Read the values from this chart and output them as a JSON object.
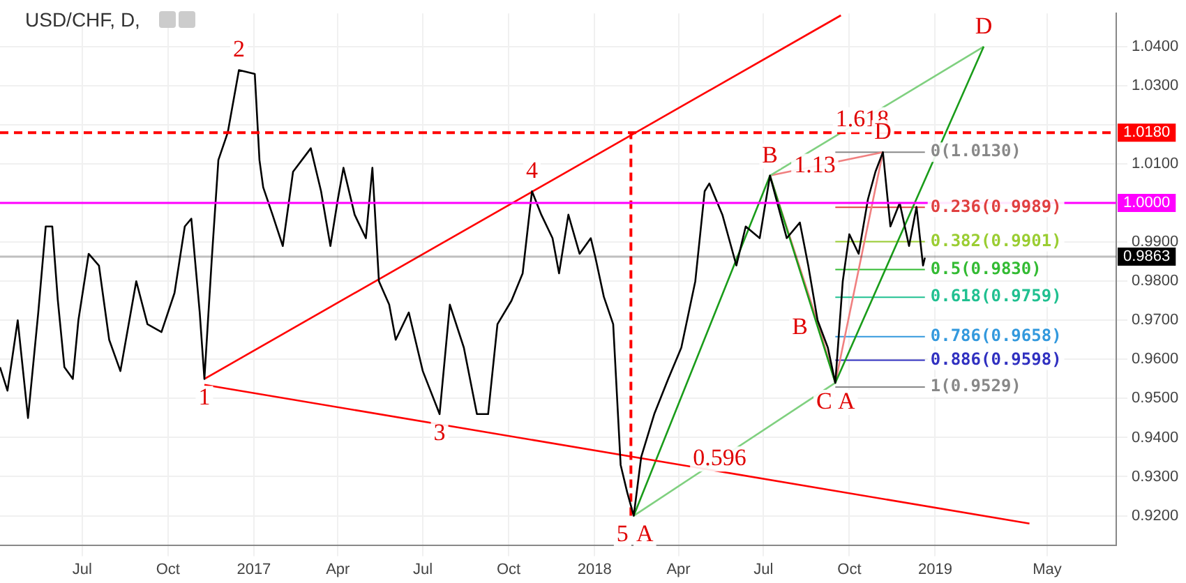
{
  "chart_data": {
    "type": "line",
    "title": "USD/CHF, D,",
    "marker": "none",
    "grid": true,
    "xlim": [
      "2016-04-04",
      "2019-07-14"
    ],
    "xticks": [
      {
        "value": "2016-07-01",
        "label": "Jul"
      },
      {
        "value": "2016-10-01",
        "label": "Oct"
      },
      {
        "value": "2017-01-01",
        "label": "2017"
      },
      {
        "value": "2017-04-01",
        "label": "Apr"
      },
      {
        "value": "2017-07-01",
        "label": "Jul"
      },
      {
        "value": "2017-10-01",
        "label": "Oct"
      },
      {
        "value": "2018-01-01",
        "label": "2018"
      },
      {
        "value": "2018-04-01",
        "label": "Apr"
      },
      {
        "value": "2018-07-01",
        "label": "Jul"
      },
      {
        "value": "2018-10-01",
        "label": "Oct"
      },
      {
        "value": "2019-01-01",
        "label": "2019"
      },
      {
        "value": "2019-05-01",
        "label": "May"
      }
    ],
    "ylim": [
      0.9125,
      1.0485
    ],
    "yticks": [
      {
        "value": 0.92,
        "label": "0.9200"
      },
      {
        "value": 0.93,
        "label": "0.9300"
      },
      {
        "value": 0.94,
        "label": "0.9400"
      },
      {
        "value": 0.95,
        "label": "0.9500"
      },
      {
        "value": 0.96,
        "label": "0.9600"
      },
      {
        "value": 0.97,
        "label": "0.9700"
      },
      {
        "value": 0.98,
        "label": "0.9800"
      },
      {
        "value": 0.99,
        "label": "0.9900"
      },
      {
        "value": 1.0,
        "label": null
      },
      {
        "value": 1.01,
        "label": "1.0100"
      },
      {
        "value": 1.02,
        "label": null
      },
      {
        "value": 1.03,
        "label": "1.0300"
      },
      {
        "value": 1.04,
        "label": "1.0400"
      }
    ],
    "series": [
      {
        "color": "#000000",
        "x": [
          "2016-04-04",
          "2016-04-12",
          "2016-04-23",
          "2016-05-04",
          "2016-05-15",
          "2016-05-23",
          "2016-05-30",
          "2016-06-05",
          "2016-06-12",
          "2016-06-21",
          "2016-06-27",
          "2016-07-08",
          "2016-07-19",
          "2016-07-30",
          "2016-08-11",
          "2016-08-28",
          "2016-09-09",
          "2016-09-24",
          "2016-10-08",
          "2016-10-19",
          "2016-10-26",
          "2016-11-04",
          "2016-11-09",
          "2016-11-17",
          "2016-11-24",
          "2016-12-04",
          "2016-12-16",
          "2017-01-02",
          "2017-01-07",
          "2017-01-11",
          "2017-01-21",
          "2017-02-01",
          "2017-02-12",
          "2017-03-03",
          "2017-03-14",
          "2017-03-24",
          "2017-04-01",
          "2017-04-07",
          "2017-04-19",
          "2017-05-01",
          "2017-05-08",
          "2017-05-15",
          "2017-05-26",
          "2017-06-02",
          "2017-06-16",
          "2017-07-01",
          "2017-07-19",
          "2017-07-30",
          "2017-08-14",
          "2017-08-28",
          "2017-09-09",
          "2017-09-19",
          "2017-10-04",
          "2017-10-16",
          "2017-10-26",
          "2017-11-05",
          "2017-11-17",
          "2017-11-24",
          "2017-12-04",
          "2017-12-16",
          "2017-12-28",
          "2018-01-02",
          "2018-01-11",
          "2018-01-21",
          "2018-01-29",
          "2018-02-05",
          "2018-02-12",
          "2018-02-20",
          "2018-03-06",
          "2018-03-21",
          "2018-04-04",
          "2018-04-19",
          "2018-04-29",
          "2018-05-04",
          "2018-05-18",
          "2018-06-02",
          "2018-06-12",
          "2018-06-27",
          "2018-07-08",
          "2018-07-26",
          "2018-08-09",
          "2018-08-18",
          "2018-08-28",
          "2018-09-08",
          "2018-09-16",
          "2018-09-24",
          "2018-10-01",
          "2018-10-11",
          "2018-10-21",
          "2018-10-29",
          "2018-11-06",
          "2018-11-14",
          "2018-11-24",
          "2018-12-04",
          "2018-12-12",
          "2018-12-19",
          "2018-12-21"
        ],
        "values": [
          0.958,
          0.952,
          0.97,
          0.945,
          0.972,
          0.994,
          0.994,
          0.975,
          0.958,
          0.955,
          0.97,
          0.987,
          0.984,
          0.965,
          0.957,
          0.98,
          0.969,
          0.967,
          0.977,
          0.994,
          0.996,
          0.972,
          0.955,
          0.986,
          1.011,
          1.018,
          1.034,
          1.033,
          1.011,
          1.004,
          0.997,
          0.989,
          1.008,
          1.014,
          1.003,
          0.989,
          1.001,
          1.009,
          0.997,
          0.991,
          1.009,
          0.98,
          0.974,
          0.965,
          0.972,
          0.957,
          0.946,
          0.974,
          0.963,
          0.946,
          0.946,
          0.969,
          0.975,
          0.982,
          1.003,
          0.997,
          0.991,
          0.982,
          0.997,
          0.987,
          0.991,
          0.986,
          0.976,
          0.969,
          0.933,
          0.926,
          0.92,
          0.935,
          0.946,
          0.955,
          0.963,
          0.98,
          1.003,
          1.005,
          0.997,
          0.984,
          0.994,
          0.991,
          1.007,
          0.991,
          0.995,
          0.984,
          0.97,
          0.963,
          0.954,
          0.98,
          0.992,
          0.987,
          1.001,
          1.008,
          1.013,
          0.994,
          1.0,
          0.989,
          0.999,
          0.984,
          0.986
        ]
      },
      {
        "color": "#ff0000",
        "x": [
          "2016-11-09",
          "2018-09-22"
        ],
        "values": [
          0.955,
          1.048
        ]
      },
      {
        "color": "#ff0000",
        "x": [
          "2016-11-09",
          "2019-04-12"
        ],
        "values": [
          0.9535,
          0.918
        ]
      },
      {
        "color": "#ff0000",
        "line_style": "dashed",
        "x": [
          "2018-02-09",
          "2018-02-09"
        ],
        "values": [
          0.92,
          1.018
        ]
      },
      {
        "color": "#1a9c1a",
        "x": [
          "2018-02-12",
          "2018-07-08",
          "2018-09-16",
          "2019-02-22"
        ],
        "values": [
          0.92,
          1.007,
          0.954,
          1.04
        ]
      },
      {
        "color": "#7fd07f",
        "x": [
          "2018-02-12",
          "2018-09-16"
        ],
        "values": [
          0.92,
          0.954
        ]
      },
      {
        "color": "#7fd07f",
        "x": [
          "2018-07-08",
          "2019-02-22"
        ],
        "values": [
          1.007,
          1.04
        ]
      },
      {
        "color": "#f08080",
        "x": [
          "2018-07-08",
          "2018-08-30",
          "2018-09-16",
          "2018-11-06"
        ],
        "values": [
          1.007,
          0.968,
          0.954,
          1.013
        ]
      },
      {
        "color": "#f08080",
        "x": [
          "2018-07-08",
          "2018-11-06"
        ],
        "values": [
          1.007,
          1.013
        ]
      },
      {
        "name": "0(1.0130)",
        "color": "#888888",
        "x": [
          "2018-09-16",
          "2018-12-21"
        ],
        "values": [
          1.013,
          1.013
        ]
      },
      {
        "name": "0.236(0.9989)",
        "color": "#e04040",
        "x": [
          "2018-09-16",
          "2018-12-21"
        ],
        "values": [
          0.9989,
          0.9989
        ]
      },
      {
        "name": "0.382(0.9901)",
        "color": "#9acd32",
        "x": [
          "2018-09-16",
          "2018-12-21"
        ],
        "values": [
          0.9901,
          0.9901
        ]
      },
      {
        "name": "0.5(0.9830)",
        "color": "#33bb33",
        "x": [
          "2018-09-16",
          "2018-12-21"
        ],
        "values": [
          0.983,
          0.983
        ]
      },
      {
        "name": "0.618(0.9759)",
        "color": "#20c090",
        "x": [
          "2018-09-16",
          "2018-12-21"
        ],
        "values": [
          0.9759,
          0.9759
        ]
      },
      {
        "name": "0.786(0.9658)",
        "color": "#3399dd",
        "x": [
          "2018-09-16",
          "2018-12-21"
        ],
        "values": [
          0.9658,
          0.9658
        ]
      },
      {
        "name": "0.886(0.9598)",
        "color": "#3030c0",
        "x": [
          "2018-09-16",
          "2018-12-21"
        ],
        "values": [
          0.9598,
          0.9598
        ]
      },
      {
        "name": "1(0.9529)",
        "color": "#888888",
        "x": [
          "2018-09-16",
          "2018-12-21"
        ],
        "values": [
          0.9529,
          0.9529
        ]
      }
    ],
    "ref_lines": [
      {
        "axis": "y",
        "value": 1.018,
        "label": "1.0180",
        "color": "#ff0000",
        "line_style": "dashed"
      },
      {
        "axis": "y",
        "value": 1.0,
        "label": "1.0000",
        "color": "#ff00ff",
        "line_style": "solid"
      },
      {
        "axis": "y",
        "value": 0.9863,
        "label": "0.9863",
        "color": "#000000",
        "line_style": "solid"
      }
    ],
    "annotations": [
      {
        "text": "1",
        "x": "2016-11-09",
        "y": 0.955
      },
      {
        "text": "2",
        "x": "2016-12-16",
        "y": 1.034
      },
      {
        "text": "3",
        "x": "2017-07-19",
        "y": 0.946
      },
      {
        "text": "4",
        "x": "2017-10-26",
        "y": 1.003
      },
      {
        "text": "5",
        "x": "2018-02-12",
        "y": 0.92
      },
      {
        "text": "A",
        "x": "2018-02-12",
        "y": 0.92
      },
      {
        "text": "B",
        "x": "2018-07-08",
        "y": 1.007
      },
      {
        "text": "C",
        "x": "2018-09-16",
        "y": 0.954
      },
      {
        "text": "D",
        "x": "2019-02-22",
        "y": 1.04
      },
      {
        "text": "0.596",
        "x": "2018-05-15",
        "y": 0.9345
      },
      {
        "text": "1.618",
        "x": "2018-10-15",
        "y": 1.0213
      },
      {
        "text": "1.13",
        "x": "2018-08-25",
        "y": 1.0094
      },
      {
        "text": "D",
        "x": "2018-11-06",
        "y": 1.013
      },
      {
        "text": "B",
        "x": "2018-08-30",
        "y": 0.968
      },
      {
        "text": "A",
        "x": "2018-09-16",
        "y": 0.954
      }
    ]
  }
}
